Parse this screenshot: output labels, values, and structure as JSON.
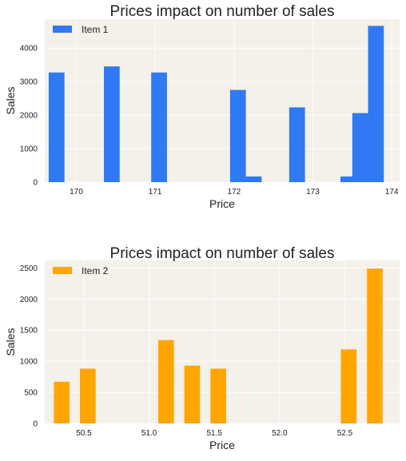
{
  "chart_data": [
    {
      "type": "bar",
      "title": "Prices impact on number of sales",
      "xlabel": "Price",
      "ylabel": "Sales",
      "xlim": [
        169.6,
        174.1
      ],
      "ylim": [
        0,
        4860
      ],
      "xticks": [
        170,
        171,
        172,
        173,
        174
      ],
      "yticks": [
        0,
        1000,
        2000,
        3000,
        4000
      ],
      "grid": true,
      "legend": "upper-left",
      "bar_width": 0.2,
      "series": [
        {
          "name": "Item 1",
          "color": "#2f79f2",
          "points": [
            {
              "x": 169.75,
              "y": 3270
            },
            {
              "x": 170.45,
              "y": 3450
            },
            {
              "x": 171.05,
              "y": 3270
            },
            {
              "x": 172.05,
              "y": 2750
            },
            {
              "x": 172.25,
              "y": 170
            },
            {
              "x": 172.8,
              "y": 2230
            },
            {
              "x": 173.45,
              "y": 170
            },
            {
              "x": 173.6,
              "y": 2060
            },
            {
              "x": 173.8,
              "y": 4660
            }
          ]
        }
      ]
    },
    {
      "type": "bar",
      "title": "Prices impact on number of sales",
      "xlabel": "Price",
      "ylabel": "Sales",
      "xlim": [
        50.2,
        52.92
      ],
      "ylim": [
        0,
        2620
      ],
      "xticks": [
        50.5,
        51.0,
        51.5,
        52.0,
        52.5
      ],
      "xtick_labels": [
        "50.5",
        "51.0",
        "51.5",
        "52.0",
        "52.5"
      ],
      "yticks": [
        0,
        500,
        1000,
        1500,
        2000,
        2500
      ],
      "grid": true,
      "legend": "upper-left",
      "bar_width": 0.12,
      "series": [
        {
          "name": "Item 2",
          "color": "#ffa500",
          "points": [
            {
              "x": 50.33,
              "y": 670
            },
            {
              "x": 50.53,
              "y": 880
            },
            {
              "x": 51.13,
              "y": 1340
            },
            {
              "x": 51.33,
              "y": 930
            },
            {
              "x": 51.53,
              "y": 880
            },
            {
              "x": 52.53,
              "y": 1190
            },
            {
              "x": 52.73,
              "y": 2490
            }
          ]
        }
      ]
    }
  ]
}
